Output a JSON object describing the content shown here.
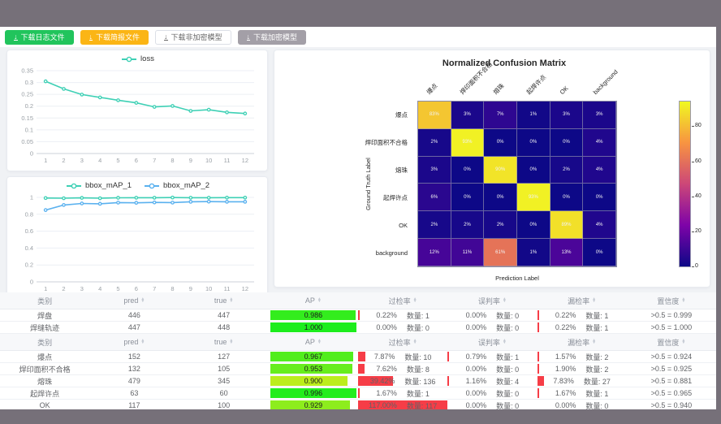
{
  "colors": {
    "frame": "#767079",
    "button_green": "#21c45c",
    "button_orange": "#fbb515",
    "button_gray": "#a39fa7",
    "rate_bar_red": "#f5222d",
    "series_teal": "#3ed0b5",
    "series_blue": "#5ab1ef"
  },
  "toolbar": {
    "buttons": [
      {
        "name": "download-log-button",
        "label": "下载日志文件",
        "variant": "green"
      },
      {
        "name": "download-brief-button",
        "label": "下载简报文件",
        "variant": "orange"
      },
      {
        "name": "download-plain-model-button",
        "label": "下载非加密模型",
        "variant": "white"
      },
      {
        "name": "download-encrypted-model-button",
        "label": "下载加密模型",
        "variant": "gray"
      }
    ]
  },
  "chart_data": [
    {
      "id": "loss",
      "type": "line",
      "x": [
        1,
        2,
        3,
        4,
        5,
        6,
        7,
        8,
        9,
        10,
        11,
        12
      ],
      "series": [
        {
          "name": "loss",
          "color": "#3ed0b5",
          "values": [
            0.305,
            0.273,
            0.249,
            0.237,
            0.225,
            0.214,
            0.197,
            0.201,
            0.18,
            0.185,
            0.174,
            0.169
          ]
        }
      ],
      "ylim": [
        0,
        0.35
      ],
      "yticks": [
        0,
        0.05,
        0.1,
        0.15,
        0.2,
        0.25,
        0.3,
        0.35
      ],
      "legend_position": "top",
      "grid": true
    },
    {
      "id": "map",
      "type": "line",
      "x": [
        1,
        2,
        3,
        4,
        5,
        6,
        7,
        8,
        9,
        10,
        11,
        12
      ],
      "series": [
        {
          "name": "bbox_mAP_1",
          "color": "#3ed0b5",
          "values": [
            0.992,
            0.99,
            0.994,
            0.99,
            0.995,
            0.996,
            0.996,
            0.998,
            0.996,
            0.996,
            0.997,
            0.997
          ]
        },
        {
          "name": "bbox_mAP_2",
          "color": "#5ab1ef",
          "values": [
            0.85,
            0.91,
            0.928,
            0.924,
            0.938,
            0.936,
            0.94,
            0.938,
            0.948,
            0.95,
            0.948,
            0.948
          ]
        }
      ],
      "ylim": [
        0,
        1
      ],
      "yticks": [
        0,
        0.2,
        0.4,
        0.6,
        0.8,
        1
      ],
      "legend_position": "top",
      "grid": true
    },
    {
      "id": "confusion",
      "type": "heatmap",
      "title": "Normalized Confusion Matrix",
      "xlabel": "Prediction Label",
      "ylabel": "Ground Truth Label",
      "categories": [
        "爆点",
        "焊印面积不合格",
        "熔珠",
        "起焊许点",
        "OK",
        "background"
      ],
      "unit": "%",
      "vmax": 95,
      "colorbar_ticks": [
        80,
        60,
        40,
        20,
        0
      ],
      "matrix": [
        [
          83,
          3,
          7,
          1,
          3,
          3
        ],
        [
          2,
          93,
          0,
          0,
          0,
          4
        ],
        [
          3,
          0,
          90,
          0,
          2,
          4
        ],
        [
          6,
          0,
          0,
          93,
          0,
          0
        ],
        [
          2,
          2,
          2,
          0,
          89,
          4
        ],
        [
          12,
          11,
          61,
          1,
          13,
          0
        ]
      ]
    }
  ],
  "tables": [
    {
      "headers": [
        {
          "label": "类别",
          "sortable": false
        },
        {
          "label": "pred",
          "sortable": true
        },
        {
          "label": "true",
          "sortable": true
        },
        {
          "label": "AP",
          "sortable": true
        },
        {
          "label": "过检率",
          "sortable": true
        },
        {
          "label": "误判率",
          "sortable": true
        },
        {
          "label": "漏检率",
          "sortable": true
        },
        {
          "label": "置信度",
          "sortable": true
        }
      ],
      "count_label": "数量:",
      "rows": [
        {
          "name": "焊盘",
          "pred": "446",
          "true": "447",
          "ap": "0.986",
          "rates": [
            {
              "pct": "0.22%",
              "count": "1"
            },
            {
              "pct": "0.00%",
              "count": "0"
            },
            {
              "pct": "0.22%",
              "count": "1"
            }
          ],
          "confidence": ">0.5 = 0.999"
        },
        {
          "name": "焊缝轨迹",
          "pred": "447",
          "true": "448",
          "ap": "1.000",
          "rates": [
            {
              "pct": "0.00%",
              "count": "0"
            },
            {
              "pct": "0.00%",
              "count": "0"
            },
            {
              "pct": "0.22%",
              "count": "1"
            }
          ],
          "confidence": ">0.5 = 1.000"
        }
      ]
    },
    {
      "headers": [
        {
          "label": "类别",
          "sortable": false
        },
        {
          "label": "pred",
          "sortable": true
        },
        {
          "label": "true",
          "sortable": true
        },
        {
          "label": "AP",
          "sortable": true
        },
        {
          "label": "过检率",
          "sortable": true
        },
        {
          "label": "误判率",
          "sortable": true
        },
        {
          "label": "漏检率",
          "sortable": true
        },
        {
          "label": "置信度",
          "sortable": true
        }
      ],
      "count_label": "数量:",
      "rows": [
        {
          "name": "爆点",
          "pred": "152",
          "true": "127",
          "ap": "0.967",
          "rates": [
            {
              "pct": "7.87%",
              "count": "10"
            },
            {
              "pct": "0.79%",
              "count": "1"
            },
            {
              "pct": "1.57%",
              "count": "2"
            }
          ],
          "confidence": ">0.5 = 0.924"
        },
        {
          "name": "焊印面积不合格",
          "pred": "132",
          "true": "105",
          "ap": "0.953",
          "rates": [
            {
              "pct": "7.62%",
              "count": "8"
            },
            {
              "pct": "0.00%",
              "count": "0"
            },
            {
              "pct": "1.90%",
              "count": "2"
            }
          ],
          "confidence": ">0.5 = 0.925"
        },
        {
          "name": "熔珠",
          "pred": "479",
          "true": "345",
          "ap": "0.900",
          "rates": [
            {
              "pct": "39.42%",
              "count": "136"
            },
            {
              "pct": "1.16%",
              "count": "4"
            },
            {
              "pct": "7.83%",
              "count": "27"
            }
          ],
          "confidence": ">0.5 = 0.881"
        },
        {
          "name": "起焊许点",
          "pred": "63",
          "true": "60",
          "ap": "0.996",
          "rates": [
            {
              "pct": "1.67%",
              "count": "1"
            },
            {
              "pct": "0.00%",
              "count": "0"
            },
            {
              "pct": "1.67%",
              "count": "1"
            }
          ],
          "confidence": ">0.5 = 0.965"
        },
        {
          "name": "OK",
          "pred": "117",
          "true": "100",
          "ap": "0.929",
          "rates": [
            {
              "pct": "117.00%",
              "count": "117"
            },
            {
              "pct": "0.00%",
              "count": "0"
            },
            {
              "pct": "0.00%",
              "count": "0"
            }
          ],
          "confidence": ">0.5 = 0.940"
        }
      ]
    }
  ]
}
